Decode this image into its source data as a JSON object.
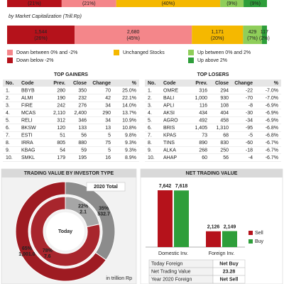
{
  "chart_data": [
    {
      "type": "stacked-hbar",
      "values": [
        21,
        21,
        40,
        9,
        9
      ],
      "value_labels": [
        "(21%)",
        "(21%)",
        "(40%)",
        "(9%)",
        "(9%)"
      ]
    },
    {
      "type": "stacked-hbar",
      "subtitle": "by Market Capitalization (Trill.Rp)",
      "values": [
        1544,
        2680,
        1171,
        429,
        117
      ],
      "value_labels": [
        "1,544",
        "2,680",
        "1,171",
        "429",
        "117"
      ],
      "pct_labels": [
        "(26%)",
        "(45%)",
        "(20%)",
        "(7%)",
        "(2%)"
      ]
    },
    {
      "type": "donut",
      "title": "TRADING VALUE BY INVESTOR TYPE",
      "total_label": "2020 Total",
      "center_label": "Today",
      "note": "in trillion Rp",
      "colors": [
        "#8c8c8c",
        "#9e1b22"
      ],
      "rings": [
        {
          "values": [
            532.7,
            1001.0
          ],
          "value_labels": [
            "532.7",
            "1,001.0"
          ],
          "pct_labels": [
            "35%",
            "65%"
          ]
        },
        {
          "values": [
            2.1,
            7.6
          ],
          "value_labels": [
            "2.1",
            "7.6"
          ],
          "pct_labels": [
            "22%",
            "78%"
          ]
        }
      ]
    },
    {
      "type": "grouped-bar",
      "title": "NET TRADING VALUE",
      "categories": [
        "Domestic Inv.",
        "Foreign Inv."
      ],
      "series": [
        {
          "name": "Sell",
          "color": "#b5121b",
          "values": [
            7642,
            2126
          ],
          "value_labels": [
            "7,642",
            "2,126"
          ]
        },
        {
          "name": "Buy",
          "color": "#2e9e3a",
          "values": [
            7618,
            2149
          ],
          "value_labels": [
            "7,618",
            "2,149"
          ]
        }
      ]
    }
  ],
  "legend": [
    {
      "name": "Down below -2%",
      "color": "#b5121b"
    },
    {
      "name": "Down between 0% and -2%",
      "color": "#f4868a"
    },
    {
      "name": "Unchanged Stocks",
      "color": "#f5b800"
    },
    {
      "name": "Up between 0% and 2%",
      "color": "#8fce5a"
    },
    {
      "name": "Up above 2%",
      "color": "#2e9e3a"
    }
  ],
  "gainers": {
    "title": "TOP GAINERS",
    "header": [
      "No.",
      "Code",
      "Prev.",
      "Close",
      "Change",
      "%"
    ],
    "rows": [
      [
        "1.",
        "BBYB",
        "280",
        "350",
        "70",
        "25.0%"
      ],
      [
        "2.",
        "ALMI",
        "190",
        "232",
        "42",
        "22.1%"
      ],
      [
        "3.",
        "FIRE",
        "242",
        "276",
        "34",
        "14.0%"
      ],
      [
        "4.",
        "MCAS",
        "2,110",
        "2,400",
        "290",
        "13.7%"
      ],
      [
        "5.",
        "RELI",
        "312",
        "346",
        "34",
        "10.9%"
      ],
      [
        "6.",
        "BKSW",
        "120",
        "133",
        "13",
        "10.8%"
      ],
      [
        "7.",
        "ESTI",
        "51",
        "56",
        "5",
        "9.8%"
      ],
      [
        "8.",
        "IRRA",
        "805",
        "880",
        "75",
        "9.3%"
      ],
      [
        "9.",
        "KBAG",
        "54",
        "59",
        "5",
        "9.3%"
      ],
      [
        "10.",
        "SMKL",
        "179",
        "195",
        "16",
        "8.9%"
      ]
    ]
  },
  "losers": {
    "title": "TOP LOSERS",
    "header": [
      "No.",
      "Code",
      "Prev.",
      "Close",
      "Change",
      "%"
    ],
    "rows": [
      [
        "1.",
        "OMRE",
        "316",
        "294",
        "-22",
        "-7.0%"
      ],
      [
        "2.",
        "BALI",
        "1,000",
        "930",
        "-70",
        "-7.0%"
      ],
      [
        "3.",
        "APLI",
        "116",
        "108",
        "-8",
        "-6.9%"
      ],
      [
        "4.",
        "AKSI",
        "434",
        "404",
        "-30",
        "-6.9%"
      ],
      [
        "5.",
        "AGRO",
        "492",
        "458",
        "-34",
        "-6.9%"
      ],
      [
        "6.",
        "BRIS",
        "1,405",
        "1,310",
        "-95",
        "-6.8%"
      ],
      [
        "7.",
        "KPAS",
        "73",
        "68",
        "-5",
        "-6.8%"
      ],
      [
        "8.",
        "TINS",
        "890",
        "830",
        "-60",
        "-6.7%"
      ],
      [
        "9.",
        "ALKA",
        "268",
        "250",
        "-18",
        "-6.7%"
      ],
      [
        "10.",
        "AHAP",
        "60",
        "56",
        "-4",
        "-6.7%"
      ]
    ]
  },
  "foreign_table": {
    "rows": [
      [
        "Today Foreign",
        "Net Buy"
      ],
      [
        "Net Trading Value",
        "23.28"
      ],
      [
        "Year 2020 Foreign",
        "Net Sell"
      ]
    ]
  }
}
